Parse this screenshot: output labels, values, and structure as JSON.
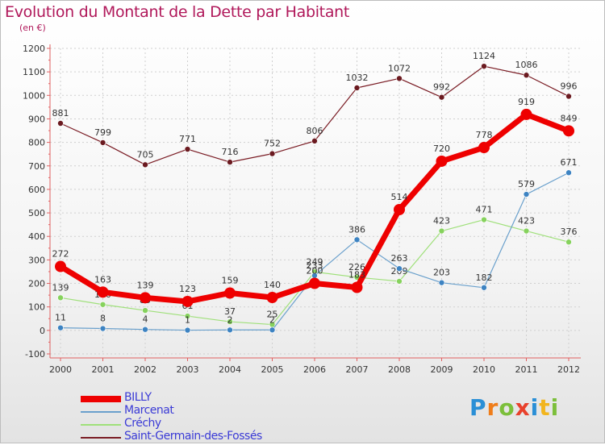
{
  "title": "Evolution du Montant de la Dette par Habitant",
  "subtitle": "(en €)",
  "logo": {
    "text": "Proxiti",
    "colors": [
      "#2a8fd6",
      "#ef7d1a",
      "#7cbf3b",
      "#e8412c",
      "#2a8fd6",
      "#f2b51e",
      "#7cbf3b"
    ]
  },
  "chart_data": {
    "type": "line",
    "x": [
      "2000",
      "2001",
      "2002",
      "2003",
      "2004",
      "2005",
      "2006",
      "2007",
      "2008",
      "2009",
      "2010",
      "2011",
      "2012"
    ],
    "ylim": [
      -100,
      1200
    ],
    "yticks": [
      "-100",
      "0",
      "100",
      "200",
      "300",
      "400",
      "500",
      "600",
      "700",
      "800",
      "900",
      "1000",
      "1100",
      "1200"
    ],
    "grid": true,
    "legend": "bottom-left",
    "series": [
      {
        "name": "Saint-Germain-des-Fossés",
        "color": "#7a1c24",
        "marker": "#6b1a20",
        "width": 1.2,
        "r": 3.5,
        "values": [
          881,
          799,
          705,
          771,
          716,
          752,
          806,
          1032,
          1072,
          992,
          1124,
          1086,
          996
        ],
        "labels": [
          "881",
          "799",
          "705",
          "771",
          "716",
          "752",
          "806",
          "1032",
          "1072",
          "992",
          "1124",
          "1086",
          "996"
        ]
      },
      {
        "name": "Créchy",
        "color": "#9fe07a",
        "marker": "#86d25d",
        "width": 1.2,
        "r": 3.5,
        "values": [
          139,
          110,
          85,
          61,
          37,
          25,
          249,
          226,
          209,
          423,
          471,
          423,
          376
        ],
        "labels": [
          "139",
          "110",
          "85",
          "61",
          "37",
          "25",
          "249",
          "226",
          "209",
          "423",
          "471",
          "423",
          "376"
        ]
      },
      {
        "name": "Marcenat",
        "color": "#6aa0cc",
        "marker": "#3d83c2",
        "width": 1.2,
        "r": 3.5,
        "values": [
          11,
          8,
          4,
          1,
          2,
          2,
          233,
          386,
          263,
          203,
          182,
          579,
          671
        ],
        "labels": [
          "11",
          "8",
          "4",
          "1",
          "2",
          "2",
          "233",
          "386",
          "263",
          "203",
          "182",
          "579",
          "671"
        ]
      },
      {
        "name": "BILLY",
        "color": "#ee0000",
        "marker": "#ee0000",
        "width": 7,
        "r": 7,
        "values": [
          272,
          163,
          139,
          123,
          159,
          140,
          200,
          183,
          514,
          720,
          778,
          919,
          849
        ],
        "labels": [
          "272",
          "163",
          "139",
          "123",
          "159",
          "140",
          "200",
          "183",
          "514",
          "720",
          "778",
          "919",
          "849"
        ]
      }
    ],
    "legend_order": [
      "BILLY",
      "Marcenat",
      "Créchy",
      "Saint-Germain-des-Fossés"
    ]
  }
}
